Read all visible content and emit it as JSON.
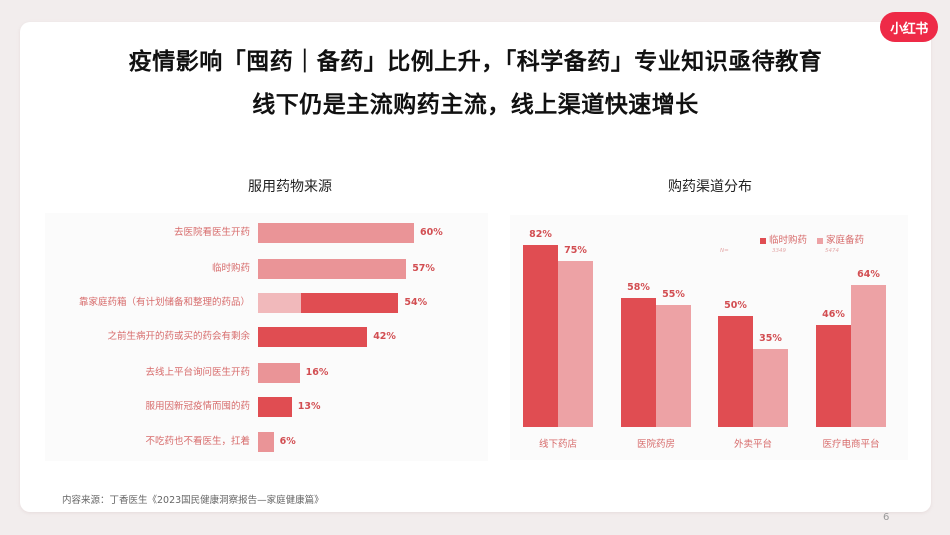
{
  "brand": {
    "logo_text": "小红书",
    "color": "#ee2a47"
  },
  "header": {
    "title_line1": "疫情影响「囤药｜备药」比例上升，「科学备药」专业知识亟待教育",
    "title_line2": "线下仍是主流购药主流，线上渠道快速增长"
  },
  "colors": {
    "dark": "#e04d52",
    "light": "#eda2a5",
    "mid": "#ea9497",
    "label": "#d76b6b"
  },
  "chart_data": [
    {
      "type": "bar",
      "orientation": "horizontal",
      "title": "服用药物来源",
      "categories": [
        "去医院看医生开药",
        "临时购药",
        "靠家庭药箱（有计划储备和整理的药品）",
        "之前生病开的药或买的药会有剩余",
        "去线上平台询问医生开药",
        "服用因新冠疫情而囤的药",
        "不吃药也不看医生，扛着"
      ],
      "values": [
        60,
        57,
        54,
        42,
        16,
        13,
        6
      ],
      "value_labels": [
        "60%",
        "57%",
        "54%",
        "42%",
        "16%",
        "13%",
        "6%"
      ],
      "bar_tone": [
        "light",
        "light",
        "dark",
        "dark",
        "light",
        "dark",
        "light"
      ],
      "xlabel": "",
      "ylabel": "",
      "xlim": [
        0,
        100
      ],
      "grid": false
    },
    {
      "type": "bar",
      "orientation": "vertical",
      "title": "购药渠道分布",
      "categories": [
        "线下药店",
        "医院药房",
        "外卖平台",
        "医疗电商平台"
      ],
      "series": [
        {
          "name": "临时购药",
          "n": "3349",
          "values": [
            82,
            58,
            50,
            46
          ],
          "labels": [
            "82%",
            "58%",
            "50%",
            "46%"
          ]
        },
        {
          "name": "家庭备药",
          "n": "5474",
          "values": [
            75,
            55,
            35,
            64
          ],
          "labels": [
            "75%",
            "55%",
            "35%",
            "64%"
          ]
        }
      ],
      "n_prefix": "N=",
      "legend_position": "top-right",
      "ylim": [
        0,
        100
      ],
      "grid": false
    }
  ],
  "footer": {
    "source": "内容来源：丁香医生《2023国民健康洞察报告—家庭健康篇》",
    "page_number": "6"
  }
}
